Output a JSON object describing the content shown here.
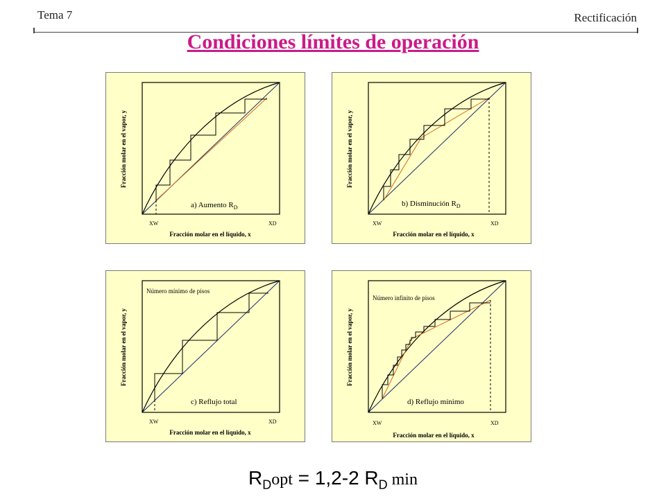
{
  "header": {
    "topic": "Tema 7",
    "section": "Rectificación",
    "title": "Condiciones límites de operación"
  },
  "axes": {
    "ylabel": "Fracción molar en el vapor, y",
    "xlabel": "Fracción molar en el líquido, x",
    "xw": "XW",
    "xd": "XD"
  },
  "panels": [
    {
      "id": "a",
      "caption": "a) Aumento R",
      "caption_sub": "D",
      "top_label": ""
    },
    {
      "id": "b",
      "caption": "b) Disminución R",
      "caption_sub": "D",
      "top_label": ""
    },
    {
      "id": "c",
      "caption": "c) Reflujo total",
      "caption_sub": "",
      "top_label": "Número mínimo de pisos"
    },
    {
      "id": "d",
      "caption": "d) Reflujo mínimo",
      "caption_sub": "",
      "top_label": "Número infinito de pisos"
    }
  ],
  "formula": {
    "r1": "R",
    "s1": "D",
    "opt": "opt",
    "eq": " = 1,2-2 R",
    "s2": "D",
    "min": " min"
  },
  "colors": {
    "panel_bg": "#ffffc8",
    "operating_line": "#d2691e",
    "title": "#cc1a88"
  }
}
